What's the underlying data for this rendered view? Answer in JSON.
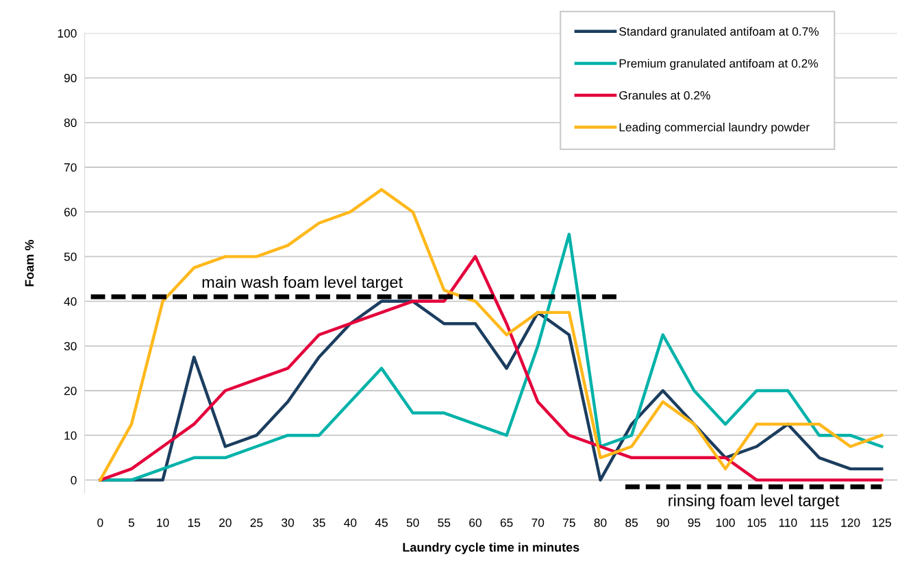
{
  "chart_data": {
    "type": "line",
    "xlabel": "Laundry cycle time in minutes",
    "ylabel": "Foam %",
    "x": [
      0,
      5,
      10,
      15,
      20,
      25,
      30,
      35,
      40,
      45,
      50,
      55,
      60,
      65,
      70,
      75,
      80,
      85,
      90,
      95,
      100,
      105,
      110,
      115,
      120,
      125
    ],
    "xlim": [
      -2.5,
      127.5
    ],
    "xticks": [
      0,
      5,
      10,
      15,
      20,
      25,
      30,
      35,
      40,
      45,
      50,
      55,
      60,
      65,
      70,
      75,
      80,
      85,
      90,
      95,
      100,
      105,
      110,
      115,
      120,
      125
    ],
    "ylim": [
      -3,
      100
    ],
    "yticks": [
      0,
      10,
      20,
      30,
      40,
      50,
      60,
      70,
      80,
      90,
      100
    ],
    "grid": "y",
    "legend": "top right",
    "marker": "none",
    "line_style": "solid",
    "series": [
      {
        "name": "Standard granulated antifoam at 0.7%",
        "color": "#1b3d5f",
        "values": [
          0,
          0,
          0,
          27.5,
          7.5,
          10,
          17.5,
          27.5,
          35,
          40,
          40,
          35,
          35,
          25,
          37.5,
          32.5,
          0,
          12.5,
          20,
          12.5,
          5,
          7.5,
          12.5,
          5,
          2.5,
          2.5
        ]
      },
      {
        "name": "Premium granulated antifoam at 0.2%",
        "color": "#00b2a9",
        "values": [
          0,
          0,
          2.5,
          5,
          5,
          7.5,
          10,
          10,
          17.5,
          25,
          15,
          15,
          12.5,
          10,
          30,
          55,
          7.5,
          10,
          32.5,
          20,
          12.5,
          20,
          20,
          10,
          10,
          7.5
        ]
      },
      {
        "name": "Granules at 0.2%",
        "color": "#e4003b",
        "values": [
          0,
          2.5,
          7.5,
          12.5,
          20,
          22.5,
          25,
          32.5,
          35,
          37.5,
          40,
          40,
          50,
          35,
          17.5,
          10,
          7.5,
          5,
          5,
          5,
          5,
          0,
          0,
          0,
          0,
          0
        ]
      },
      {
        "name": "Leading commercial laundry powder",
        "color": "#ffb81c",
        "values": [
          0,
          12.5,
          40,
          47.5,
          50,
          50,
          52.5,
          57.5,
          60,
          65,
          60,
          42.5,
          40,
          32.5,
          37.5,
          37.5,
          5,
          7.5,
          17.5,
          12.5,
          2.5,
          12.5,
          12.5,
          12.5,
          7.5,
          10
        ]
      },
      {
        "color": "#000000",
        "line_style": "dashed",
        "x": [
          -1.5,
          83
        ],
        "values": [
          41,
          41
        ]
      },
      {
        "color": "#000000",
        "line_style": "dashed",
        "x": [
          84,
          125
        ],
        "values": [
          -1.5,
          -1.5
        ]
      }
    ],
    "annotations": [
      "main wash foam level target",
      "rinsing foam level target"
    ]
  }
}
